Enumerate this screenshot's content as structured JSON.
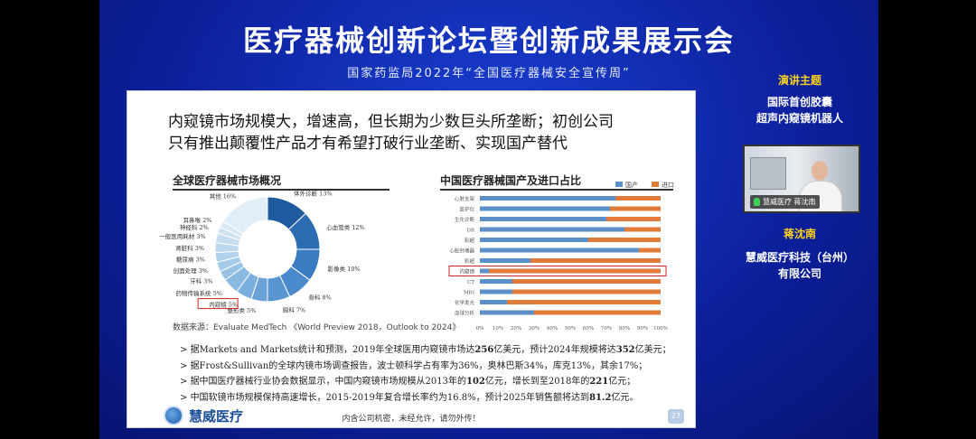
{
  "event": {
    "title": "医疗器械创新论坛暨创新成果展示会",
    "subtitle": "国家药监局2022年“全国医疗器械安全宣传周”"
  },
  "sidebar": {
    "topic_label": "演讲主题",
    "topic_lines": [
      "国际首创胶囊",
      "超声内窥镜机器人"
    ],
    "video_name_tag": "慧威医疗 蒋沈南",
    "speaker_name": "蒋沈南",
    "speaker_org_lines": [
      "慧威医疗科技（台州）",
      "有限公司"
    ]
  },
  "slide": {
    "heading_lines": [
      "内窥镜市场规模大，增速高，但长期为少数巨头所垄断；初创公司",
      "只有推出颠覆性产品才有希望打破行业垄断、实现国产替代"
    ],
    "left_chart_title": "全球医疗器械市场概况",
    "right_chart_title": "中国医疗器械国产及进口占比",
    "source_note": "数据来源：Evaluate MedTech 《World Preview 2018，Outlook to 2024》",
    "bullets": [
      {
        "pre": "据Markets and Markets统计和预测，2019年全球医用内窥镜市场达",
        "b1": "256",
        "mid": "亿美元，预计2024年规模将达",
        "b2": "352",
        "post": "亿美元；"
      },
      {
        "pre": "据Frost&Sullivan的全球内镜市场调查报告，波士顿科学占有率为36%，奥林巴斯34%，库克13%，其余17%；",
        "b1": "",
        "mid": "",
        "b2": "",
        "post": ""
      },
      {
        "pre": "据中国医疗器械行业协会数据显示，中国内窥镜市场规模从2013年的",
        "b1": "102",
        "mid": "亿元，增长到至2018年的",
        "b2": "221",
        "post": "亿元；"
      },
      {
        "pre": "中国软镜市场规模保持高速增长，2015-2019年复合增长率约为16.8%，预计2025年销售额将达到",
        "b1": "81.2",
        "mid": "亿元。",
        "b2": "",
        "post": ""
      }
    ],
    "bullet_marker": ">",
    "footer_logo": "慧威医疗",
    "footer_confidential": "内含公司机密，未经允许，请勿外传！",
    "page_number": "27"
  },
  "chart_data": [
    {
      "type": "pie",
      "title": "全球医疗器械市场概况",
      "donut": true,
      "categories": [
        "体外诊断",
        "心血管类",
        "影像类",
        "骨科",
        "眼科",
        "整形类",
        "内窥镜",
        "药物传输系统",
        "牙科",
        "创面处理",
        "糖尿病",
        "肾脏科",
        "一般医用耗材",
        "神经科",
        "耳鼻喉",
        "其他"
      ],
      "labels": [
        "体外诊断 13%",
        "心血管类 12%",
        "影像类 10%",
        "骨科 8%",
        "眼科 7%",
        "整形类 5%",
        "内窥镜 5%",
        "药物传输系统 5%",
        "牙科 3%",
        "创面处理 3%",
        "糖尿病 3%",
        "肾脏科 3%",
        "一般医用耗材 3%",
        "神经科 2%",
        "耳鼻喉 2%",
        "其他 16%"
      ],
      "values": [
        13,
        12,
        10,
        8,
        7,
        5,
        5,
        5,
        3,
        3,
        3,
        3,
        3,
        2,
        2,
        16
      ],
      "highlight": "内窥镜"
    },
    {
      "type": "bar",
      "stacked": true,
      "orientation": "horizontal",
      "title": "中国医疗器械国产及进口占比",
      "categories": [
        "心脏支架",
        "监护仪",
        "生化诊断",
        "DR",
        "彩超",
        "心脏封堵器",
        "彩超",
        "内窥镜",
        "CT",
        "MRI",
        "化学发光",
        "血球分析"
      ],
      "series": [
        {
          "name": "国产",
          "color": "#5b8fc7",
          "values": [
            75,
            72,
            70,
            80,
            60,
            88,
            28,
            5,
            18,
            18,
            15,
            30
          ]
        },
        {
          "name": "进口",
          "color": "#e07b39",
          "values": [
            25,
            28,
            30,
            20,
            40,
            12,
            72,
            95,
            82,
            82,
            85,
            70
          ]
        }
      ],
      "xticks": [
        "0%",
        "10%",
        "20%",
        "30%",
        "40%",
        "50%",
        "60%",
        "70%",
        "80%",
        "90%",
        "100%"
      ],
      "xlim": [
        0,
        100
      ],
      "legend": "top-right",
      "highlight": "内窥镜"
    }
  ],
  "colors": {
    "stage_blue": "#0c1f9a",
    "accent_yellow": "#ffd21a",
    "highlight_red": "#d1232a"
  }
}
